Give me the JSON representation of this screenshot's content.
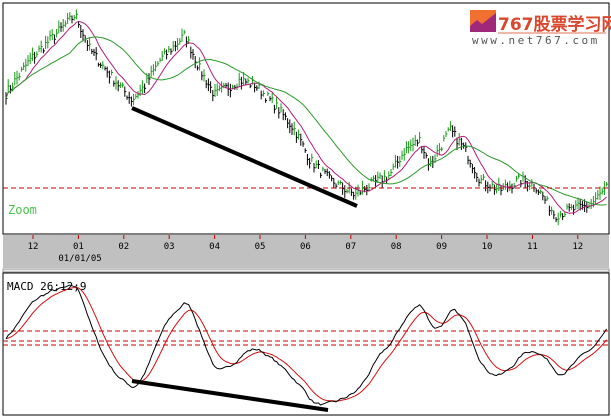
{
  "logo": {
    "title": "767股票学习网",
    "url": "www.net767.com"
  },
  "zoom_label": "Zoom",
  "macd_label": "MACD 26;12;9",
  "colors": {
    "bars_up": "#1a9a1a",
    "bars_down": "#000000",
    "ma_short": "#b0207a",
    "ma_long": "#2a9a2a",
    "macd": "#000000",
    "signal": "#d01010",
    "dashed": "#c00000",
    "axis_bg": "#c0c0c0"
  },
  "chart_data": [
    {
      "type": "bar",
      "subtype": "ohlc-price",
      "categories": [
        "12",
        "01",
        "02",
        "03",
        "04",
        "05",
        "06",
        "07",
        "08",
        "09",
        "10",
        "11",
        "12"
      ],
      "first_date_label": "01/01/05",
      "price_path": [
        [
          -0.62,
          145
        ],
        [
          -0.07,
          180
        ],
        [
          0.37,
          200
        ],
        [
          0.93,
          225
        ],
        [
          1.26,
          190
        ],
        [
          1.7,
          165
        ],
        [
          2.18,
          140
        ],
        [
          2.47,
          155
        ],
        [
          2.8,
          180
        ],
        [
          3.13,
          195
        ],
        [
          3.35,
          205
        ],
        [
          3.68,
          170
        ],
        [
          4.0,
          145
        ],
        [
          4.56,
          160
        ],
        [
          4.89,
          155
        ],
        [
          5.33,
          135
        ],
        [
          5.77,
          110
        ],
        [
          6.1,
          80
        ],
        [
          6.54,
          60
        ],
        [
          7.09,
          45
        ],
        [
          7.42,
          55
        ],
        [
          7.86,
          65
        ],
        [
          8.19,
          90
        ],
        [
          8.52,
          100
        ],
        [
          8.74,
          75
        ],
        [
          9.19,
          110
        ],
        [
          9.52,
          90
        ],
        [
          9.85,
          60
        ],
        [
          10.29,
          50
        ],
        [
          10.73,
          60
        ],
        [
          11.06,
          55
        ],
        [
          11.5,
          25
        ],
        [
          11.83,
          30
        ],
        [
          12.27,
          35
        ],
        [
          12.7,
          55
        ]
      ],
      "moving_averages": 2,
      "reference_line": "dashed horizontal",
      "trendline": "downward from 02 low to 07 low",
      "grid": false
    },
    {
      "type": "line",
      "title": "MACD 26;12;9",
      "series": [
        "MACD",
        "Signal"
      ],
      "reference_lines": 3,
      "trendline": "downward from 02 trough to 07 trough",
      "grid": false
    }
  ]
}
